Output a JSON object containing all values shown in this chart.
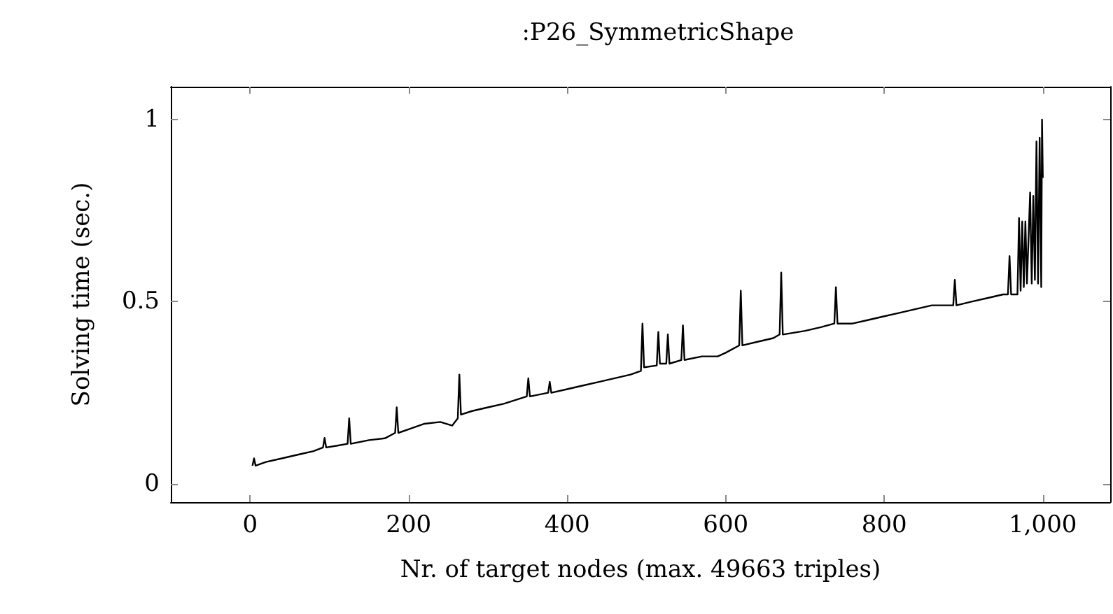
{
  "chart_data": {
    "type": "line",
    "title": ":P26_SymmetricShape",
    "xlabel": "Nr. of target nodes (max. 49663 triples)",
    "ylabel": "Solving time (sec.)",
    "xlim": [
      -100,
      1085
    ],
    "ylim": [
      -0.05,
      1.09
    ],
    "xticks": [
      0,
      200,
      400,
      600,
      800,
      {
        "value": 1000,
        "label": "1,000"
      }
    ],
    "yticks": [
      0,
      0.5,
      1
    ],
    "grid": false,
    "marker": "none",
    "line_style": "solid",
    "series": [
      {
        "color": "#000000",
        "x": [
          3,
          5,
          7,
          20,
          40,
          60,
          80,
          92,
          94,
          96,
          110,
          123,
          125,
          127,
          150,
          170,
          183,
          185,
          187,
          200,
          220,
          240,
          255,
          262,
          264,
          266,
          280,
          300,
          320,
          349,
          351,
          353,
          376,
          378,
          380,
          400,
          420,
          440,
          460,
          480,
          493,
          495,
          497,
          513,
          515,
          517,
          525,
          527,
          529,
          544,
          546,
          548,
          570,
          590,
          600,
          617,
          619,
          621,
          640,
          660,
          668,
          670,
          672,
          700,
          720,
          737,
          739,
          741,
          760,
          780,
          800,
          820,
          840,
          860,
          887,
          889,
          891,
          910,
          930,
          950,
          956,
          958,
          960,
          968,
          970,
          972,
          974,
          976,
          978,
          980,
          984,
          986,
          988,
          990,
          992,
          994,
          996,
          998,
          999,
          1000
        ],
        "values": [
          0.05,
          0.07,
          0.05,
          0.06,
          0.07,
          0.08,
          0.09,
          0.1,
          0.126,
          0.1,
          0.105,
          0.11,
          0.18,
          0.11,
          0.12,
          0.125,
          0.14,
          0.21,
          0.14,
          0.15,
          0.165,
          0.17,
          0.16,
          0.18,
          0.3,
          0.19,
          0.2,
          0.21,
          0.22,
          0.24,
          0.29,
          0.24,
          0.25,
          0.28,
          0.25,
          0.26,
          0.27,
          0.28,
          0.29,
          0.3,
          0.31,
          0.44,
          0.32,
          0.325,
          0.417,
          0.33,
          0.33,
          0.41,
          0.33,
          0.34,
          0.435,
          0.34,
          0.35,
          0.35,
          0.36,
          0.38,
          0.53,
          0.38,
          0.39,
          0.4,
          0.41,
          0.58,
          0.41,
          0.42,
          0.43,
          0.44,
          0.54,
          0.44,
          0.44,
          0.45,
          0.46,
          0.47,
          0.48,
          0.49,
          0.49,
          0.56,
          0.49,
          0.5,
          0.51,
          0.52,
          0.52,
          0.625,
          0.52,
          0.52,
          0.73,
          0.53,
          0.72,
          0.54,
          0.72,
          0.55,
          0.8,
          0.55,
          0.79,
          0.56,
          0.94,
          0.55,
          0.95,
          0.54,
          1,
          0.84
        ]
      }
    ]
  }
}
